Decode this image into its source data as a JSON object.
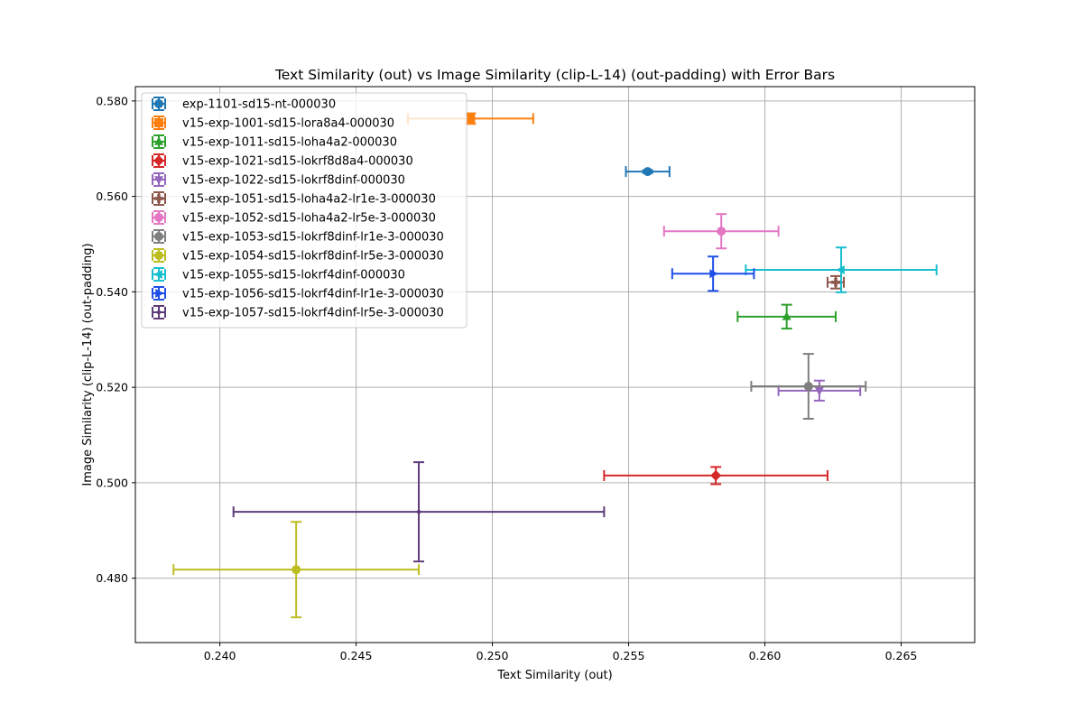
{
  "chart_data": {
    "type": "scatter",
    "title": "Text Similarity (out) vs Image Similarity (clip-L-14) (out-padding) with Error Bars",
    "xlabel": "Text Similarity (out)",
    "ylabel": "Image Similarity (clip-L-14) (out-padding)",
    "xlim": [
      0.2369,
      0.2677
    ],
    "ylim": [
      0.4665,
      0.583
    ],
    "xticks": [
      "0.240",
      "0.245",
      "0.250",
      "0.255",
      "0.260",
      "0.265"
    ],
    "yticks": [
      "0.480",
      "0.500",
      "0.520",
      "0.540",
      "0.560",
      "0.580"
    ],
    "grid": true,
    "legend_position": "upper-left",
    "series": [
      {
        "name": "exp-1101-sd15-nt-000030",
        "color": "#1f77b4",
        "marker": "circle",
        "x": 0.2557,
        "y": 0.5652,
        "xerr": 0.0008,
        "yerr": 0.0003
      },
      {
        "name": "v15-exp-1001-sd15-lora8a4-000030",
        "color": "#ff7f0e",
        "marker": "square",
        "x": 0.2492,
        "y": 0.5763,
        "xerr": 0.0023,
        "yerr": 0.0011
      },
      {
        "name": "v15-exp-1011-sd15-loha4a2-000030",
        "color": "#2ca02c",
        "marker": "triangle-up",
        "x": 0.2608,
        "y": 0.5348,
        "xerr": 0.0018,
        "yerr": 0.0025
      },
      {
        "name": "v15-exp-1021-sd15-lokrf8d8a4-000030",
        "color": "#d62728",
        "marker": "diamond",
        "x": 0.2582,
        "y": 0.5015,
        "xerr": 0.0041,
        "yerr": 0.0018
      },
      {
        "name": "v15-exp-1022-sd15-lokrf8dinf-000030",
        "color": "#9467bd",
        "marker": "triangle-down",
        "x": 0.262,
        "y": 0.5193,
        "xerr": 0.0015,
        "yerr": 0.0021
      },
      {
        "name": "v15-exp-1051-sd15-loha4a2-lr1e-3-000030",
        "color": "#8c564b",
        "marker": "plus",
        "x": 0.2626,
        "y": 0.542,
        "xerr": 0.0003,
        "yerr": 0.0013
      },
      {
        "name": "v15-exp-1052-sd15-loha4a2-lr5e-3-000030",
        "color": "#e377c2",
        "marker": "circle",
        "x": 0.2584,
        "y": 0.5527,
        "xerr": 0.0021,
        "yerr": 0.0036
      },
      {
        "name": "v15-exp-1053-sd15-lokrf8dinf-lr1e-3-000030",
        "color": "#7f7f7f",
        "marker": "circle",
        "x": 0.2616,
        "y": 0.5202,
        "xerr": 0.0021,
        "yerr": 0.0068
      },
      {
        "name": "v15-exp-1054-sd15-lokrf8dinf-lr5e-3-000030",
        "color": "#bcbd22",
        "marker": "circle",
        "x": 0.2428,
        "y": 0.4818,
        "xerr": 0.0045,
        "yerr": 0.01
      },
      {
        "name": "v15-exp-1055-sd15-lokrf4dinf-000030",
        "color": "#17becf",
        "marker": "triangle-left",
        "x": 0.2628,
        "y": 0.5446,
        "xerr": 0.0035,
        "yerr": 0.0047
      },
      {
        "name": "v15-exp-1056-sd15-lokrf4dinf-lr1e-3-000030",
        "color": "#1f4fe8",
        "marker": "triangle-right",
        "x": 0.2581,
        "y": 0.5438,
        "xerr": 0.0015,
        "yerr": 0.0036
      },
      {
        "name": "v15-exp-1057-sd15-lokrf4dinf-lr5e-3-000030",
        "color": "#5e3c7a",
        "marker": "small-circle",
        "x": 0.2473,
        "y": 0.4939,
        "xerr": 0.0068,
        "yerr": 0.0104
      }
    ]
  }
}
